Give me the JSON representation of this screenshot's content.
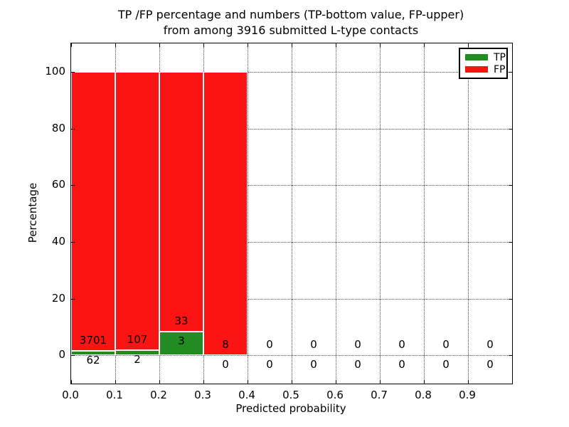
{
  "chart_data": {
    "type": "bar",
    "stacked": true,
    "title_line1": "TP /FP percentage and numbers (TP-bottom value, FP-upper)",
    "title_line2": "from among 3916 submitted L-type contacts",
    "xlabel": "Predicted probability",
    "ylabel": "Percentage",
    "xlim": [
      0.0,
      1.0
    ],
    "ylim": [
      -10,
      110
    ],
    "grid": true,
    "grid_style": "dotted",
    "x_tick_labels": [
      "0.0",
      "0.1",
      "0.2",
      "0.3",
      "0.4",
      "0.5",
      "0.6",
      "0.7",
      "0.8",
      "0.9"
    ],
    "x_tick_values": [
      0.0,
      0.1,
      0.2,
      0.3,
      0.4,
      0.5,
      0.6,
      0.7,
      0.8,
      0.9
    ],
    "y_tick_values": [
      0,
      20,
      40,
      60,
      80,
      100
    ],
    "legend": {
      "position": "upper right",
      "entries": [
        {
          "label": "TP",
          "color": "#228b22"
        },
        {
          "label": "FP",
          "color": "#fb1414"
        }
      ]
    },
    "series_note": "Each bin stacked to 100%: TP percent on bottom (green), FP percent on top (red). Upper number = FP count, lower number = TP count.",
    "bins": [
      {
        "range": [
          0.0,
          0.1
        ],
        "tp_count": 62,
        "fp_count": 3701
      },
      {
        "range": [
          0.1,
          0.2
        ],
        "tp_count": 2,
        "fp_count": 107
      },
      {
        "range": [
          0.2,
          0.3
        ],
        "tp_count": 3,
        "fp_count": 33
      },
      {
        "range": [
          0.3,
          0.4
        ],
        "tp_count": 0,
        "fp_count": 8
      },
      {
        "range": [
          0.4,
          0.5
        ],
        "tp_count": 0,
        "fp_count": 0
      },
      {
        "range": [
          0.5,
          0.6
        ],
        "tp_count": 0,
        "fp_count": 0
      },
      {
        "range": [
          0.6,
          0.7
        ],
        "tp_count": 0,
        "fp_count": 0
      },
      {
        "range": [
          0.7,
          0.8
        ],
        "tp_count": 0,
        "fp_count": 0
      },
      {
        "range": [
          0.8,
          0.9
        ],
        "tp_count": 0,
        "fp_count": 0
      },
      {
        "range": [
          0.9,
          1.0
        ],
        "tp_count": 0,
        "fp_count": 0
      }
    ]
  },
  "colors": {
    "tp_green": "#228b22",
    "fp_red": "#fb1414",
    "bar_edge": "#ffffff",
    "grid": "#4a4a4a",
    "axis": "#000000",
    "background": "#ffffff"
  }
}
